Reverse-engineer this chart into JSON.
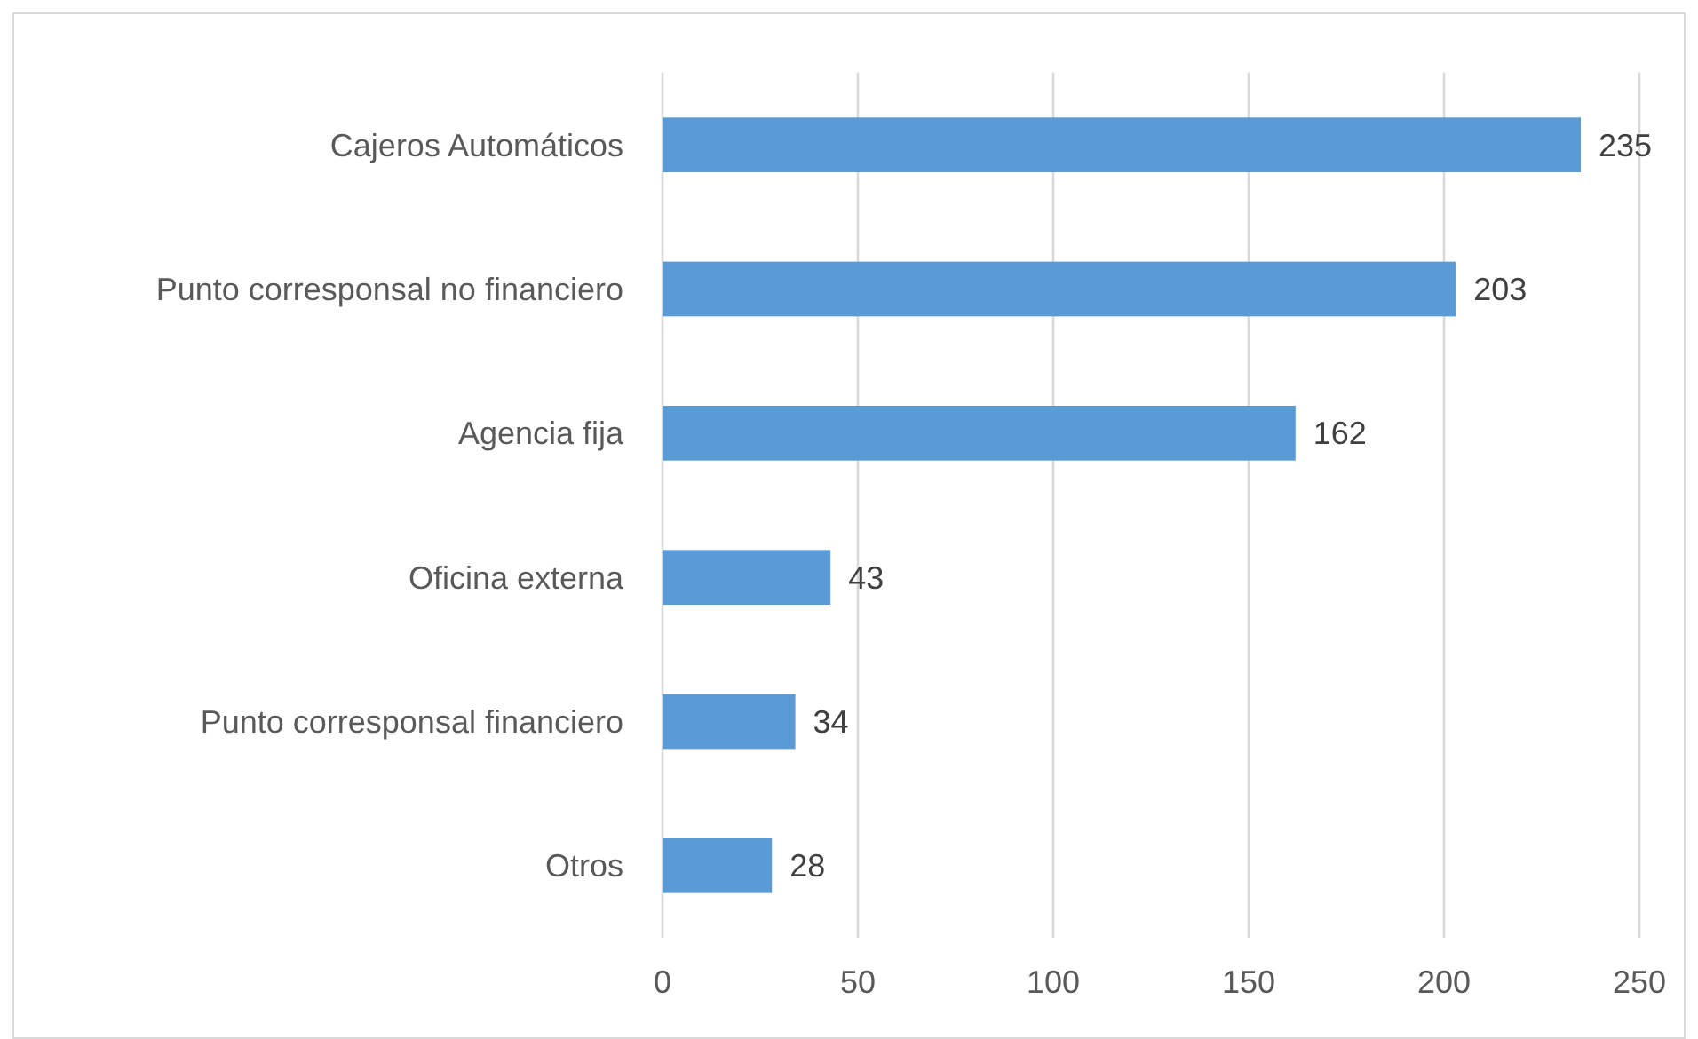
{
  "chart_data": {
    "type": "bar",
    "orientation": "horizontal",
    "categories": [
      "Cajeros Automáticos",
      "Punto corresponsal no financiero",
      "Agencia fija",
      "Oficina externa",
      "Punto corresponsal financiero",
      "Otros"
    ],
    "values": [
      235,
      203,
      162,
      43,
      34,
      28
    ],
    "color": "#5b9bd5",
    "xlim": [
      0,
      250
    ],
    "xticks": [
      0,
      50,
      100,
      150,
      200,
      250
    ],
    "grid": "x",
    "data_labels": true
  }
}
